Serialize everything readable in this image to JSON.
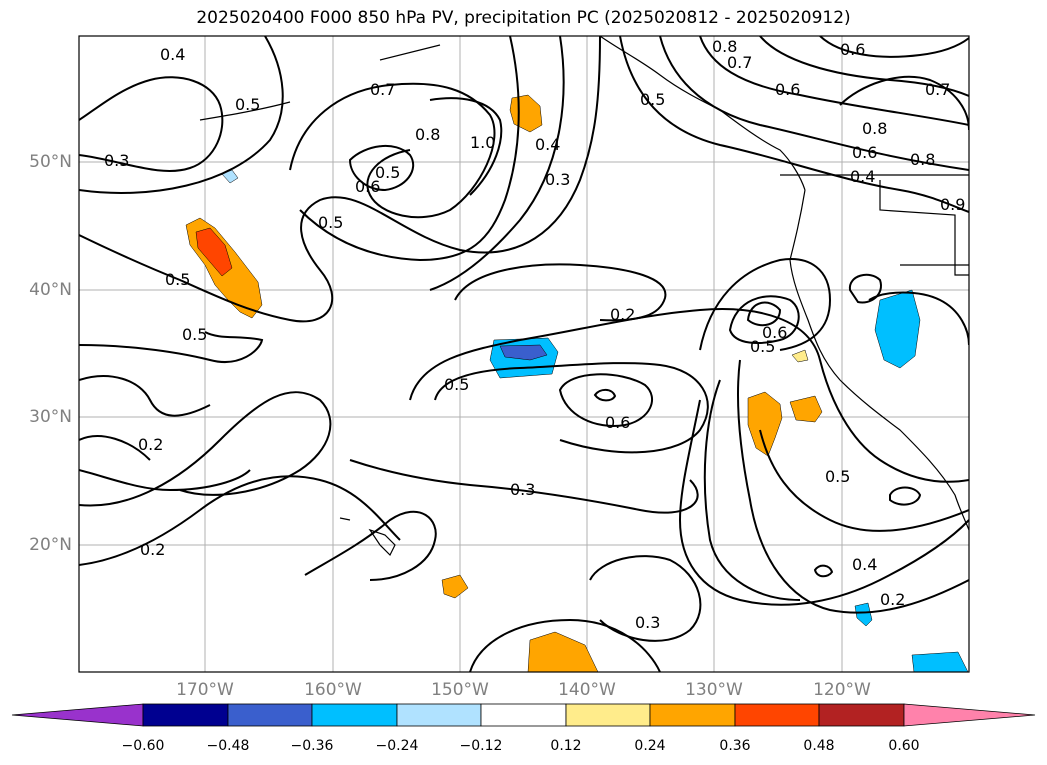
{
  "title": "2025020400 F000 850 hPa PV, precipitation PC (2025020812 - 2025020912)",
  "lat_labels": [
    "50°N",
    "40°N",
    "30°N",
    "20°N"
  ],
  "lon_labels": [
    "170°W",
    "160°W",
    "150°W",
    "140°W",
    "130°W",
    "120°W"
  ],
  "contour_labels": [
    "0.4",
    "0.5",
    "0.7",
    "0.8",
    "1.0",
    "0.4",
    "0.3",
    "0.5",
    "0.6",
    "0.3",
    "0.5",
    "0.5",
    "0.5",
    "0.2",
    "0.5",
    "0.6",
    "0.5",
    "0.6",
    "0.2",
    "0.3",
    "0.5",
    "0.4",
    "0.2",
    "0.3",
    "0.2",
    "0.8",
    "0.7",
    "0.6",
    "0.5",
    "0.6",
    "0.8",
    "0.6",
    "0.4",
    "0.7",
    "0.8",
    "0.9"
  ],
  "colorbar": {
    "ticks": [
      "−0.60",
      "−0.48",
      "−0.36",
      "−0.24",
      "−0.12",
      "0.12",
      "0.24",
      "0.36",
      "0.48",
      "0.60"
    ],
    "colors": [
      "#9932cc",
      "#000090",
      "#3a5fcd",
      "#00bfff",
      "#b0e2ff",
      "#ffffff",
      "#ffec8b",
      "#ffa500",
      "#ff4500",
      "#b22222",
      "#ff82ab"
    ]
  }
}
